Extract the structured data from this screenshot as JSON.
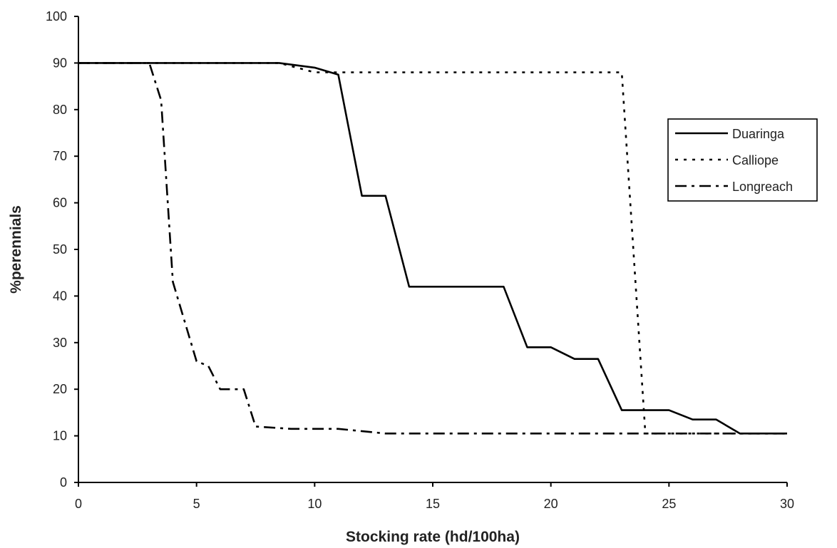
{
  "chart_data": {
    "type": "line",
    "title": "",
    "xlabel": "Stocking rate (hd/100ha)",
    "ylabel": "%perennials",
    "xlim": [
      0,
      30
    ],
    "ylim": [
      0,
      100
    ],
    "xticks": [
      "0",
      "5",
      "10",
      "15",
      "20",
      "25",
      "30"
    ],
    "yticks": [
      "0",
      "10",
      "20",
      "30",
      "40",
      "50",
      "60",
      "70",
      "80",
      "90",
      "100"
    ],
    "grid": false,
    "legend_position": "right",
    "series": [
      {
        "name": "Duaringa",
        "style": "solid",
        "x": [
          0,
          8.5,
          10,
          11,
          12,
          13,
          14,
          15,
          16,
          17,
          18,
          19,
          20,
          21,
          22,
          23,
          24,
          25,
          26,
          27,
          28,
          29,
          30
        ],
        "y": [
          90,
          90,
          89,
          87.5,
          61.5,
          61.5,
          42,
          42,
          42,
          42,
          42,
          29,
          29,
          26.5,
          26.5,
          15.5,
          15.5,
          15.5,
          13.5,
          13.5,
          10.5,
          10.5,
          10.5
        ]
      },
      {
        "name": "Calliope",
        "style": "dotted",
        "x": [
          0,
          8.5,
          10,
          23,
          24,
          30
        ],
        "y": [
          90,
          90,
          88,
          88,
          10.5,
          10.5
        ]
      },
      {
        "name": "Longreach",
        "style": "dashdot",
        "x": [
          0,
          3,
          3.5,
          4,
          5,
          5.5,
          6,
          7,
          7.5,
          9,
          11,
          13,
          30
        ],
        "y": [
          90,
          90,
          82,
          43,
          26,
          25,
          20,
          20,
          12,
          11.5,
          11.5,
          10.5,
          10.5
        ]
      }
    ]
  }
}
